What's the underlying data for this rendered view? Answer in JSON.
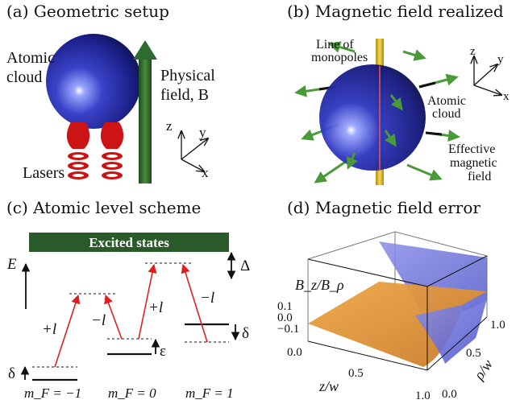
{
  "panels": {
    "a": {
      "caption": "(a) Geometric setup",
      "atomic_cloud_label": [
        "Atomic",
        "cloud"
      ],
      "field_label": [
        "Physical",
        "field, B"
      ],
      "lasers_label": "Lasers",
      "axes": {
        "z": "z",
        "y": "y",
        "x": "x"
      }
    },
    "b": {
      "caption": "(b) Magnetic field realized",
      "monopoles_label": [
        "Line of",
        "monopoles"
      ],
      "atomic_cloud_label": [
        "Atomic",
        "cloud"
      ],
      "effective_field_label": [
        "Effective",
        "magnetic",
        "field"
      ],
      "axes": {
        "z": "z",
        "y": "y",
        "x": "x"
      }
    },
    "c": {
      "caption": "(c) Atomic level scheme",
      "excited_states": "Excited states",
      "energy_label": "E",
      "delta_upper": "Δ",
      "delta_right": "δ",
      "delta_left": "δ",
      "epsilon": "ε",
      "transitions": [
        "+l",
        "−l",
        "+l",
        "−l"
      ],
      "levels": [
        "m_F = −1",
        "m_F = 0",
        "m_F = 1"
      ]
    },
    "d": {
      "caption": "(d) Magnetic field error",
      "zlabel": "B_z/B_ρ",
      "xlabel": "z/w",
      "ylabel": "ρ/w",
      "z_ticks": [
        "0.1",
        "0.0",
        "−0.1"
      ],
      "x_ticks": [
        "0.0",
        "0.5",
        "1.0"
      ],
      "y_ticks": [
        "0.0",
        "0.5",
        "1.0"
      ]
    }
  },
  "colors": {
    "sphere": "#2a2fa8",
    "arrow_green": "#2e6b2e",
    "laser_red": "#d01818",
    "excited_bar": "#2a5a2a",
    "transition_red": "#e02020",
    "surface_orange": "#e09a3a",
    "surface_blue": "#6a70d8"
  }
}
